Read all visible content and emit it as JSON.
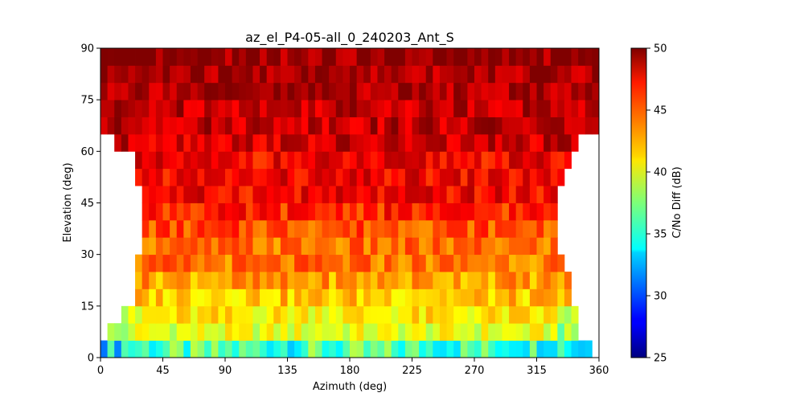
{
  "chart_data": {
    "type": "heatmap",
    "title": "az_el_P4-05-all_0_240203_Ant_S",
    "xlabel": "Azimuth (deg)",
    "ylabel": "Elevation (deg)",
    "xlim": [
      0,
      360
    ],
    "ylim": [
      0,
      90
    ],
    "x_ticks": [
      "0",
      "45",
      "90",
      "135",
      "180",
      "225",
      "270",
      "315",
      "360"
    ],
    "y_ticks": [
      "0",
      "15",
      "30",
      "45",
      "60",
      "75",
      "90"
    ],
    "colormap": "jet",
    "colorbar": {
      "label": "C/No Diff (dB)",
      "range": [
        25,
        50
      ],
      "ticks": [
        "25",
        "30",
        "35",
        "40",
        "45",
        "50"
      ]
    },
    "grid": false,
    "bin_size_deg": {
      "azimuth": 5,
      "elevation": 5
    },
    "elevation_rows_deg": [
      0,
      5,
      10,
      15,
      20,
      25,
      30,
      35,
      40,
      45,
      50,
      55,
      60,
      65,
      70,
      75,
      80,
      85
    ],
    "visible_azimuth_range_by_row_deg": [
      [
        0,
        355
      ],
      [
        5,
        345
      ],
      [
        15,
        345
      ],
      [
        25,
        340
      ],
      [
        25,
        340
      ],
      [
        25,
        335
      ],
      [
        30,
        330
      ],
      [
        30,
        330
      ],
      [
        30,
        330
      ],
      [
        30,
        330
      ],
      [
        25,
        335
      ],
      [
        25,
        340
      ],
      [
        10,
        345
      ],
      [
        0,
        360
      ],
      [
        0,
        360
      ],
      [
        0,
        360
      ],
      [
        0,
        360
      ],
      [
        0,
        360
      ]
    ],
    "approx_mean_value_by_row_db": [
      36,
      40,
      41,
      42,
      43,
      44,
      44,
      45,
      46,
      47,
      47,
      47,
      48,
      48.5,
      48.5,
      49,
      49,
      49.5
    ]
  }
}
